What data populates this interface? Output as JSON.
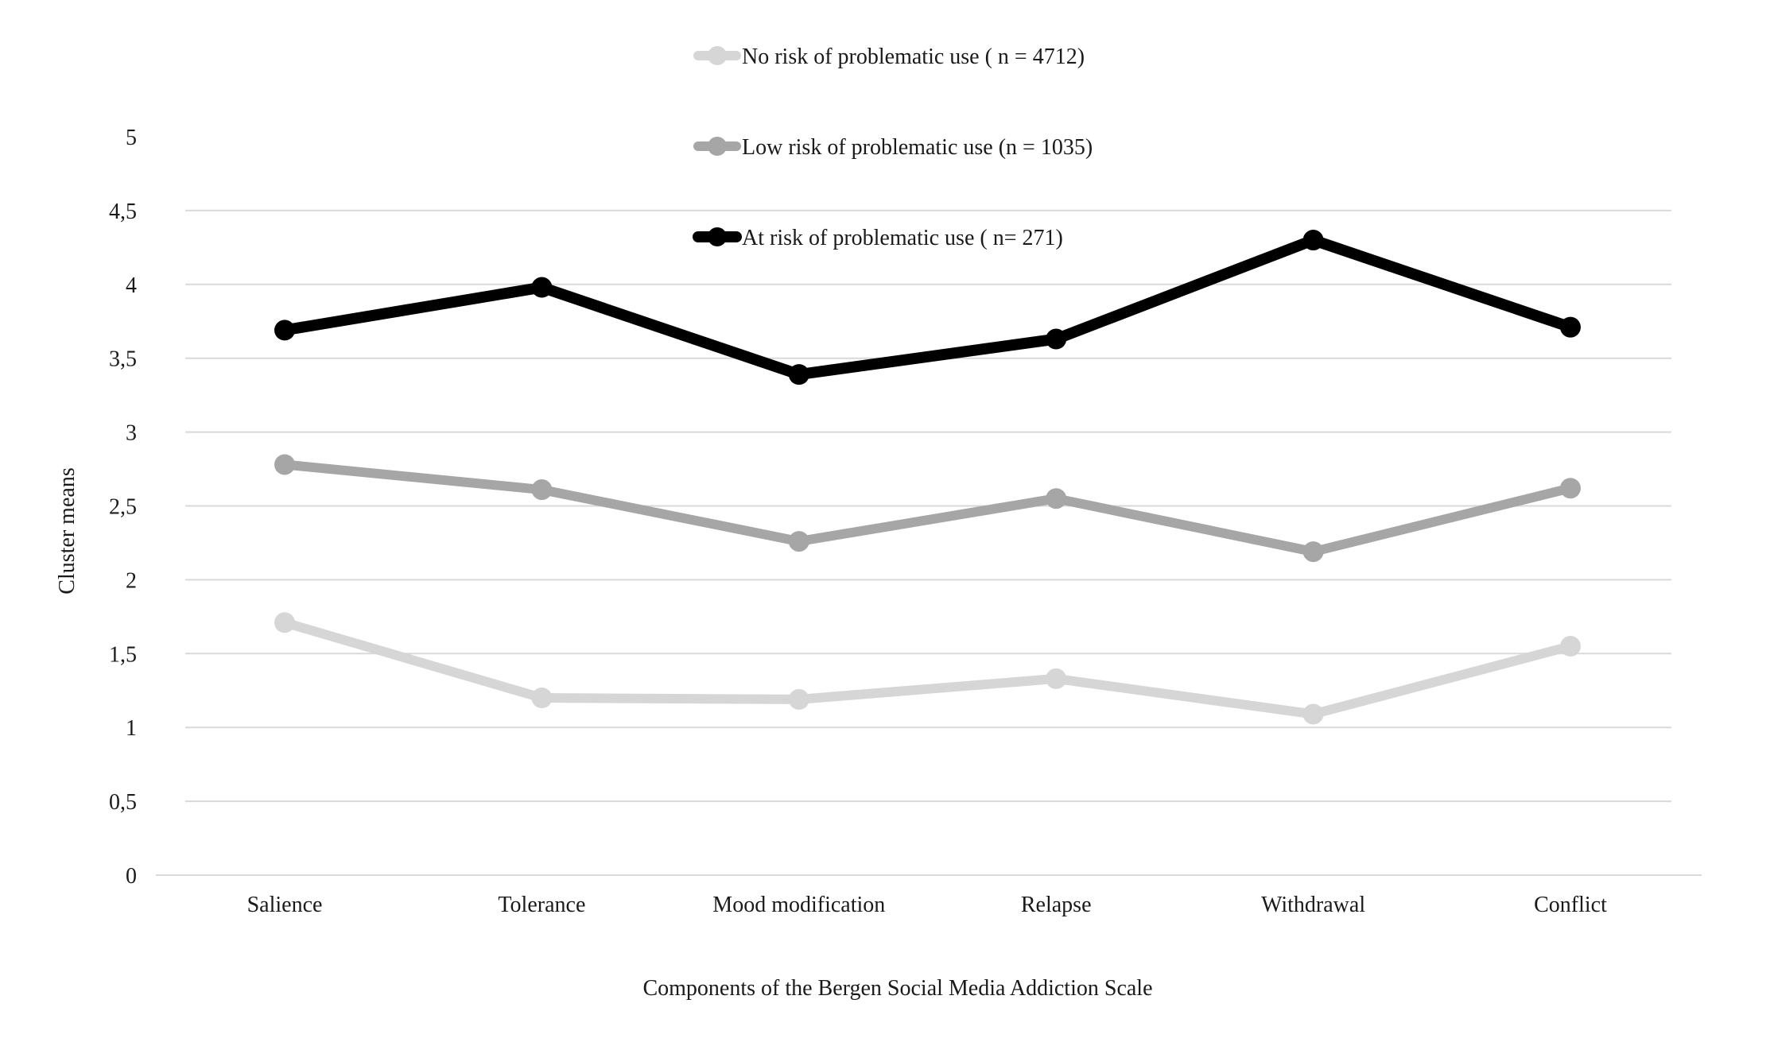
{
  "chart_data": {
    "type": "line",
    "title": "",
    "xlabel": "Components of the Bergen Social Media Addiction Scale",
    "ylabel": "Cluster means",
    "ylim": [
      0,
      5
    ],
    "yticks": [
      0,
      0.5,
      1,
      1.5,
      2,
      2.5,
      3,
      3.5,
      4,
      4.5,
      5
    ],
    "ytick_labels": [
      "0",
      "0,5",
      "1",
      "1,5",
      "2",
      "2,5",
      "3",
      "3,5",
      "4",
      "4,5",
      "5"
    ],
    "grid": true,
    "legend_position": "top-center",
    "categories": [
      "Salience",
      "Tolerance",
      "Mood modification",
      "Relapse",
      "Withdrawal",
      "Conflict"
    ],
    "series": [
      {
        "name": "No risk of problematic use ( n = 4712)",
        "color": "#d6d6d6",
        "values": [
          1.71,
          1.2,
          1.19,
          1.33,
          1.09,
          1.55
        ]
      },
      {
        "name": "Low risk of problematic use (n = 1035)",
        "color": "#a6a6a6",
        "values": [
          2.78,
          2.61,
          2.26,
          2.55,
          2.19,
          2.62
        ]
      },
      {
        "name": "At risk of problematic use ( n= 271)",
        "color": "#000000",
        "values": [
          3.69,
          3.98,
          3.39,
          3.63,
          4.3,
          3.71
        ]
      }
    ]
  }
}
